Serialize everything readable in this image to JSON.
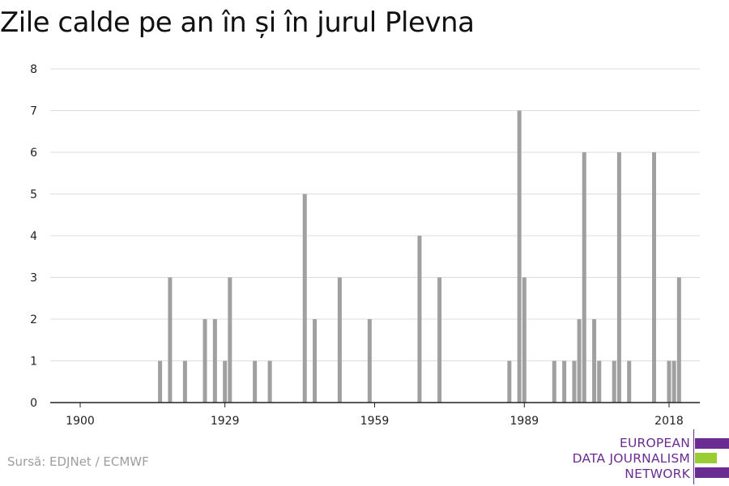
{
  "title": "Zile calde pe an în și în jurul Plevna",
  "source": "Sursă: EDJNet / ECMWF",
  "logo": {
    "lines": [
      "EUROPEAN",
      "DATA JOURNALISM",
      "NETWORK"
    ],
    "colors": {
      "purple": "#6b2c91",
      "green": "#9acd32"
    }
  },
  "colors": {
    "bar": "#a0a0a0",
    "grid": "#dddddd",
    "axis": "#222222"
  },
  "chart_data": {
    "type": "bar",
    "title": "Zile calde pe an în și în jurul Plevna",
    "xlabel": "",
    "ylabel": "",
    "xlim": [
      1900,
      2018
    ],
    "ylim": [
      0,
      8
    ],
    "x_ticks": [
      1900,
      1929,
      1959,
      1989,
      2018
    ],
    "y_ticks": [
      0,
      1,
      2,
      3,
      4,
      5,
      6,
      7,
      8
    ],
    "grid": true,
    "x": [
      1916,
      1918,
      1921,
      1925,
      1927,
      1929,
      1930,
      1935,
      1938,
      1945,
      1947,
      1952,
      1958,
      1968,
      1972,
      1986,
      1988,
      1989,
      1995,
      1997,
      1999,
      2000,
      2001,
      2003,
      2004,
      2007,
      2008,
      2010,
      2015,
      2018,
      2019,
      2020
    ],
    "values": [
      1,
      3,
      1,
      2,
      2,
      1,
      3,
      1,
      1,
      5,
      2,
      3,
      2,
      4,
      3,
      1,
      7,
      3,
      1,
      1,
      1,
      2,
      6,
      2,
      1,
      1,
      6,
      1,
      6,
      1,
      1,
      3
    ]
  }
}
